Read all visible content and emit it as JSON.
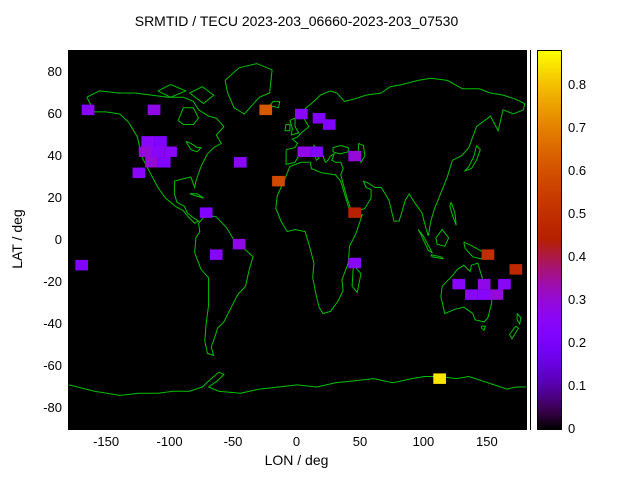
{
  "chart_data": {
    "type": "heatmap",
    "title": "SRMTID / TECU 2023-203_06660-2023-203_07530",
    "xlabel": "LON / deg",
    "ylabel": "LAT / deg",
    "xlim": [
      -180,
      180
    ],
    "ylim": [
      -90,
      90
    ],
    "x_ticks": [
      -150,
      -100,
      -50,
      0,
      50,
      100,
      150
    ],
    "y_ticks": [
      -80,
      -60,
      -40,
      -20,
      0,
      20,
      40,
      60,
      80
    ],
    "colorbar": {
      "min": 0,
      "max": 0.88,
      "tick_labels": [
        "0",
        "0.1",
        "0.2",
        "0.3",
        "0.4",
        "0.5",
        "0.6",
        "0.7",
        "0.8"
      ],
      "colormap": "gnuplot black-purple-red-yellow",
      "units": "TECU"
    },
    "cell_size_deg": {
      "lon": 10,
      "lat": 5
    },
    "map": {
      "background": "#000000",
      "coastline": "#00c000",
      "frame": "#000000"
    },
    "points": [
      {
        "lon": -165,
        "lat": 62,
        "v": 0.25
      },
      {
        "lon": -113,
        "lat": 62,
        "v": 0.28
      },
      {
        "lon": -118,
        "lat": 47,
        "v": 0.25
      },
      {
        "lon": -108,
        "lat": 47,
        "v": 0.22
      },
      {
        "lon": -120,
        "lat": 42,
        "v": 0.3
      },
      {
        "lon": -110,
        "lat": 42,
        "v": 0.25
      },
      {
        "lon": -100,
        "lat": 42,
        "v": 0.25
      },
      {
        "lon": -115,
        "lat": 37,
        "v": 0.3
      },
      {
        "lon": -105,
        "lat": 37,
        "v": 0.22
      },
      {
        "lon": -125,
        "lat": 32,
        "v": 0.25
      },
      {
        "lon": -45,
        "lat": 37,
        "v": 0.25
      },
      {
        "lon": -25,
        "lat": 62,
        "v": 0.62
      },
      {
        "lon": 3,
        "lat": 60,
        "v": 0.25
      },
      {
        "lon": 17,
        "lat": 58,
        "v": 0.22
      },
      {
        "lon": 25,
        "lat": 55,
        "v": 0.22
      },
      {
        "lon": 5,
        "lat": 42,
        "v": 0.28
      },
      {
        "lon": 15,
        "lat": 42,
        "v": 0.22
      },
      {
        "lon": 45,
        "lat": 40,
        "v": 0.3
      },
      {
        "lon": -15,
        "lat": 28,
        "v": 0.58
      },
      {
        "lon": 45,
        "lat": 13,
        "v": 0.45
      },
      {
        "lon": -72,
        "lat": 13,
        "v": 0.22
      },
      {
        "lon": -46,
        "lat": -2,
        "v": 0.28
      },
      {
        "lon": -64,
        "lat": -7,
        "v": 0.25
      },
      {
        "lon": -170,
        "lat": -12,
        "v": 0.22
      },
      {
        "lon": 45,
        "lat": -11,
        "v": 0.25
      },
      {
        "lon": 150,
        "lat": -7,
        "v": 0.5
      },
      {
        "lon": 172,
        "lat": -14,
        "v": 0.48
      },
      {
        "lon": 127,
        "lat": -21,
        "v": 0.25
      },
      {
        "lon": 137,
        "lat": -26,
        "v": 0.25
      },
      {
        "lon": 147,
        "lat": -21,
        "v": 0.28
      },
      {
        "lon": 147,
        "lat": -26,
        "v": 0.25
      },
      {
        "lon": 157,
        "lat": -26,
        "v": 0.3
      },
      {
        "lon": 163,
        "lat": -21,
        "v": 0.25
      },
      {
        "lon": 112,
        "lat": -66,
        "v": 0.85
      }
    ]
  }
}
